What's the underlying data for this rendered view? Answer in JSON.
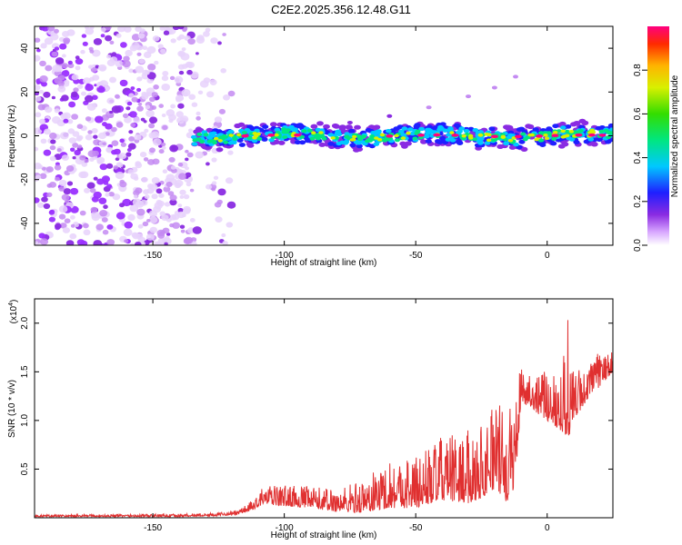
{
  "title": "C2E2.2025.356.12.48.G11",
  "colors": {
    "snr_line": "#e03030",
    "scatter_base": "#8a2be2",
    "axis": "#000000"
  },
  "chart_data": [
    {
      "type": "heatmap",
      "name": "spectrogram",
      "title": "C2E2.2025.356.12.48.G11",
      "xlabel": "Height of straight line (km)",
      "ylabel": "Frequency (Hz)",
      "xlim": [
        -195,
        25
      ],
      "ylim": [
        -50,
        50
      ],
      "xticks": [
        -150,
        -100,
        -50,
        0
      ],
      "xtick_labels": [
        "-150",
        "-100",
        "-50",
        "0"
      ],
      "yticks": [
        -40,
        -20,
        0,
        20,
        40
      ],
      "ytick_labels": [
        "-40",
        "-20",
        "0",
        "20",
        "40"
      ],
      "noise_region_x": [
        -195,
        -120
      ],
      "signal_band": {
        "x_start": -135,
        "x_end": 25,
        "center_hz": 0,
        "halfwidth_hz": 3,
        "peak_amplitude": 0.98
      },
      "diagonal_trace": {
        "x": [
          -75,
          -60,
          -45,
          -30,
          -20,
          -12
        ],
        "y": [
          6,
          9,
          13,
          18,
          22,
          27
        ]
      },
      "colorbar": {
        "label": "Normalized spectral amplitude",
        "range": [
          0,
          1
        ],
        "ticks": [
          0.0,
          0.2,
          0.4,
          0.6,
          0.8
        ],
        "tick_labels": [
          "0.0",
          "0.2",
          "0.4",
          "0.6",
          "0.8"
        ]
      }
    },
    {
      "type": "line",
      "name": "snr",
      "xlabel": "Height of straight line (km)",
      "ylabel": "SNR (10 * v/v)",
      "exponent_label": "(x10",
      "exponent_power": "4",
      "exponent_close": ")",
      "xlim": [
        -195,
        25
      ],
      "ylim": [
        0,
        2.25
      ],
      "xticks": [
        -150,
        -100,
        -50,
        0
      ],
      "xtick_labels": [
        "-150",
        "-100",
        "-50",
        "0"
      ],
      "yticks": [
        0.5,
        1.0,
        1.5,
        2.0
      ],
      "ytick_labels": [
        "0.5",
        "1.0",
        "1.5",
        "2.0"
      ],
      "envelope": {
        "x": [
          -195,
          -140,
          -125,
          -118,
          -112,
          -108,
          -100,
          -90,
          -80,
          -70,
          -60,
          -50,
          -40,
          -30,
          -25,
          -20,
          -15,
          -12,
          -10,
          -5,
          0,
          5,
          8,
          10,
          15,
          20,
          25
        ],
        "base": [
          0.01,
          0.01,
          0.02,
          0.03,
          0.08,
          0.14,
          0.12,
          0.1,
          0.06,
          0.05,
          0.1,
          0.1,
          0.18,
          0.15,
          0.2,
          0.3,
          0.15,
          0.35,
          1.2,
          1.1,
          1.0,
          0.9,
          0.8,
          1.0,
          1.2,
          1.35,
          1.5
        ],
        "amp": [
          0.02,
          0.03,
          0.03,
          0.05,
          0.1,
          0.18,
          0.22,
          0.22,
          0.25,
          0.35,
          0.5,
          0.55,
          0.65,
          0.75,
          0.8,
          0.95,
          0.9,
          1.0,
          0.4,
          0.4,
          0.5,
          0.7,
          1.4,
          0.5,
          0.4,
          0.35,
          0.2
        ]
      }
    }
  ]
}
